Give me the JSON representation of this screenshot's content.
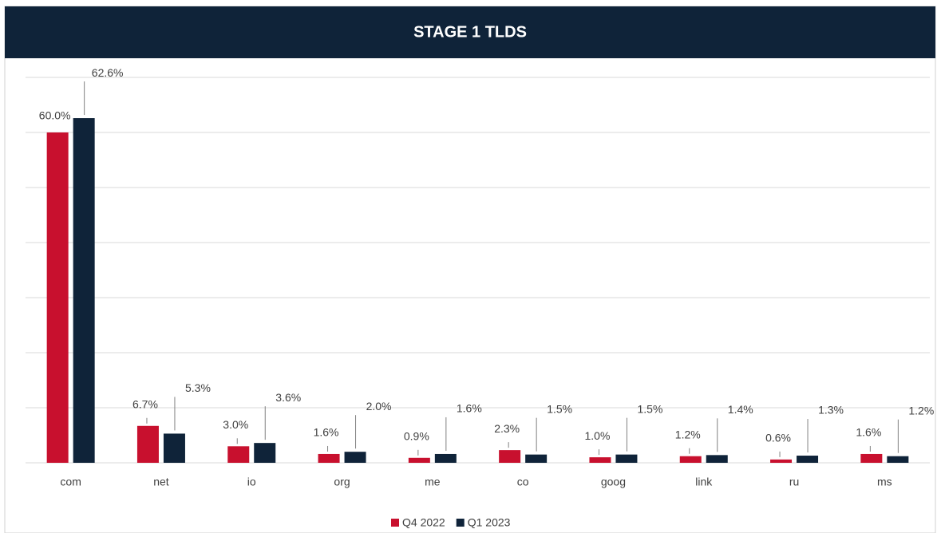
{
  "chart_data": {
    "type": "bar",
    "title": "STAGE 1 TLDS",
    "categories": [
      "com",
      "net",
      "io",
      "org",
      "me",
      "co",
      "goog",
      "link",
      "ru",
      "ms"
    ],
    "series": [
      {
        "name": "Q4 2022",
        "color": "#c8102e",
        "values": [
          60.0,
          6.7,
          3.0,
          1.6,
          0.9,
          2.3,
          1.0,
          1.2,
          0.6,
          1.6
        ],
        "value_labels": [
          "60.0%",
          "6.7%",
          "3.0%",
          "1.6%",
          "0.9%",
          "2.3%",
          "1.0%",
          "1.2%",
          "0.6%",
          "1.6%"
        ]
      },
      {
        "name": "Q1 2023",
        "color": "#0f2339",
        "values": [
          62.6,
          5.3,
          3.6,
          2.0,
          1.6,
          1.5,
          1.5,
          1.4,
          1.3,
          1.2
        ],
        "value_labels": [
          "62.6%",
          "5.3%",
          "3.6%",
          "2.0%",
          "1.6%",
          "1.5%",
          "1.5%",
          "1.4%",
          "1.3%",
          "1.2%"
        ]
      }
    ],
    "ylim": [
      0,
      70
    ],
    "yticks": [
      0,
      10,
      20,
      30,
      40,
      50,
      60,
      70
    ],
    "grid": true,
    "legend": "bottom"
  }
}
